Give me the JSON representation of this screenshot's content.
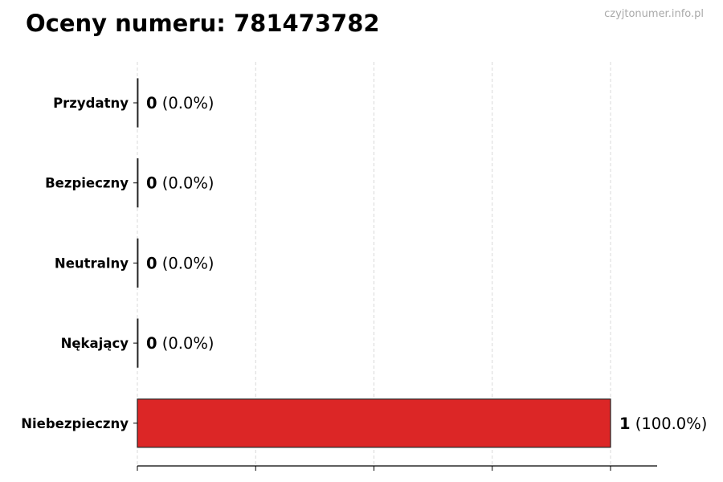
{
  "title": "Oceny numeru: 781473782",
  "watermark": "czyjtonumer.info.pl",
  "chart_data": {
    "type": "bar",
    "orientation": "horizontal",
    "title": "Oceny numeru: 781473782",
    "categories": [
      "Przydatny",
      "Bezpieczny",
      "Neutralny",
      "Nękający",
      "Niebezpieczny"
    ],
    "values": [
      0,
      0,
      0,
      0,
      1
    ],
    "value_labels": [
      {
        "count": "0",
        "percent": "(0.0%)"
      },
      {
        "count": "0",
        "percent": "(0.0%)"
      },
      {
        "count": "0",
        "percent": "(0.0%)"
      },
      {
        "count": "0",
        "percent": "(0.0%)"
      },
      {
        "count": "1",
        "percent": "(100.0%)"
      }
    ],
    "bar_color": "#dc2626",
    "xlim": [
      0,
      1.1
    ],
    "xticks": [
      0,
      0.25,
      0.5,
      0.75,
      1.0
    ],
    "xtick_labels_shown": false,
    "grid": "x dashed",
    "xlabel": "",
    "ylabel": ""
  }
}
